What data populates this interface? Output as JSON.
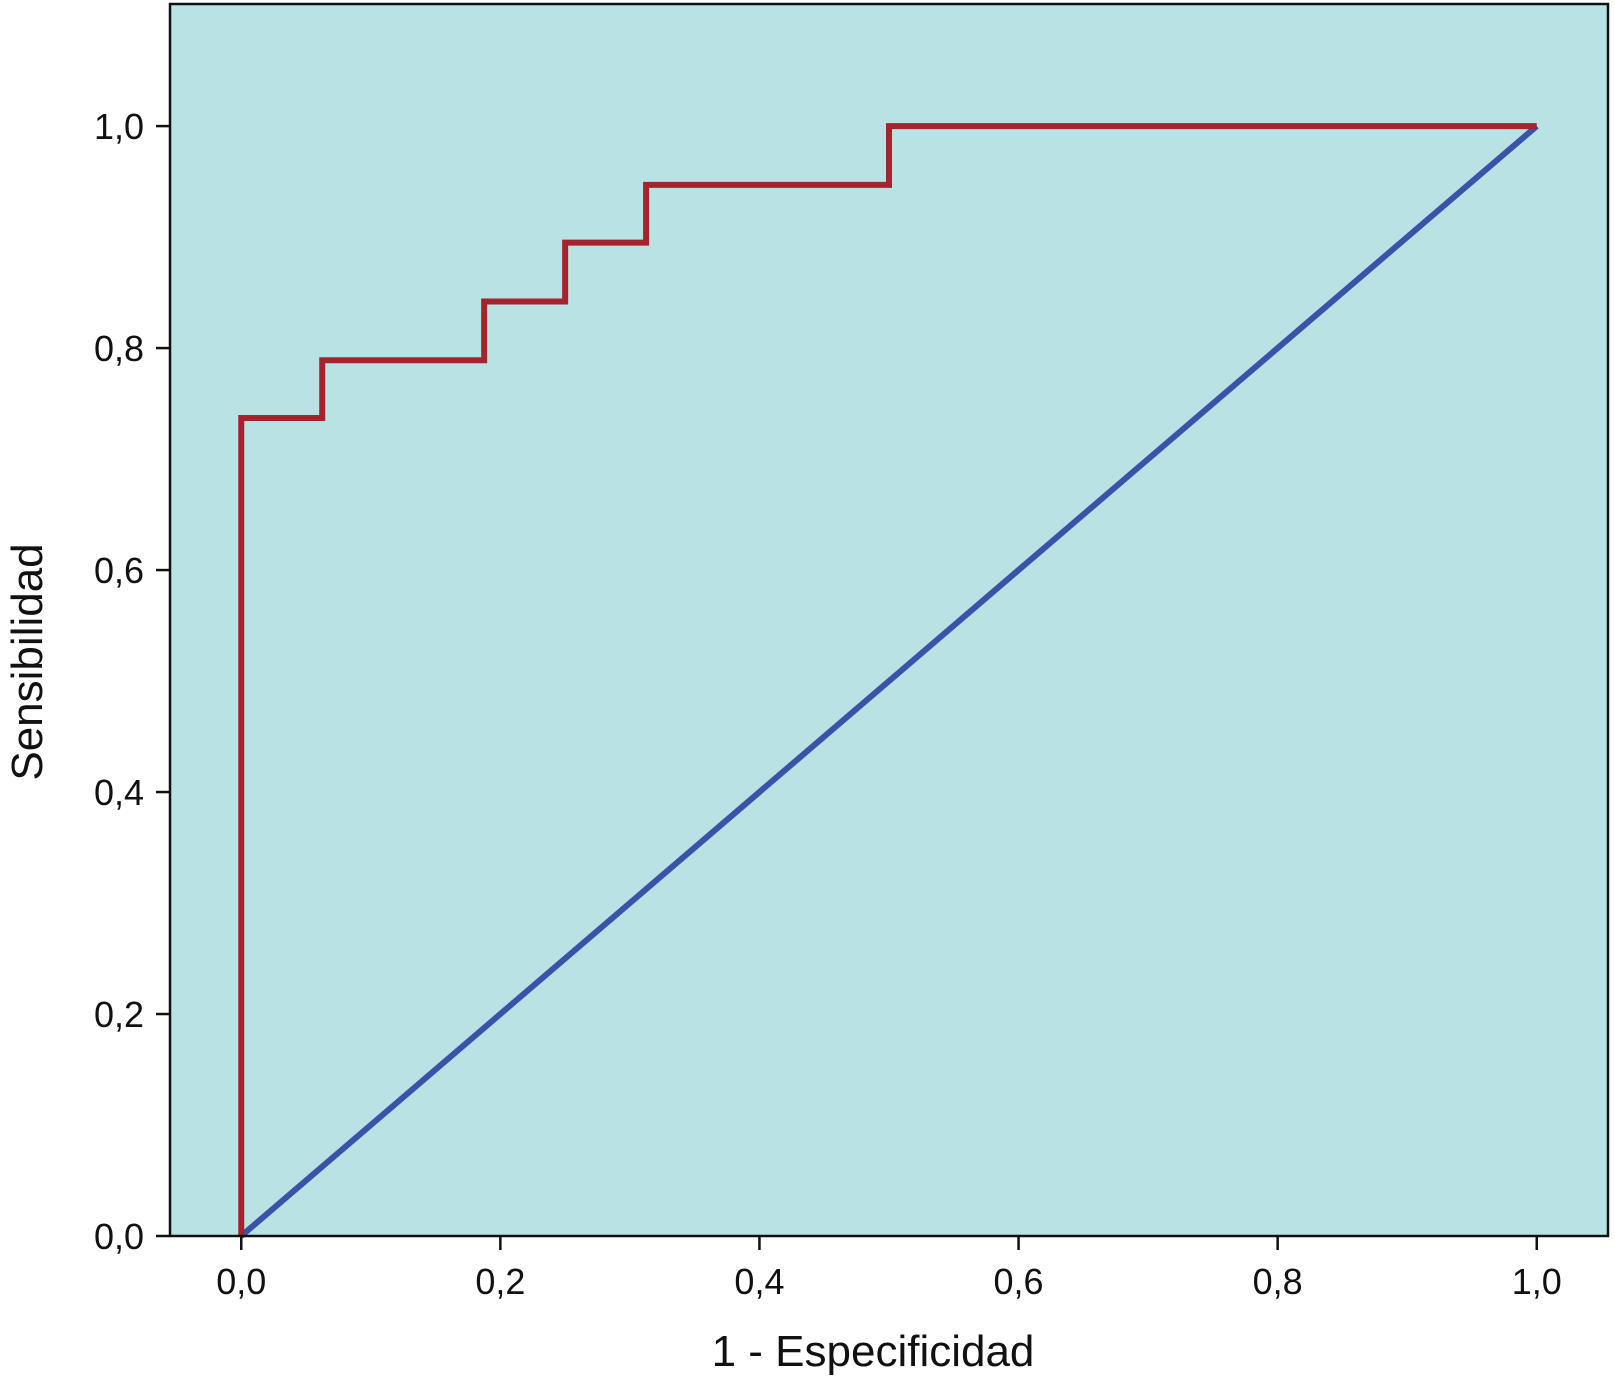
{
  "chart_data": {
    "type": "line",
    "xlabel": "1 - Especificidad",
    "ylabel": "Sensibilidad",
    "xlim": [
      -0.055,
      1.055
    ],
    "ylim": [
      0,
      1.11
    ],
    "xticks": [
      "0,0",
      "0,2",
      "0,4",
      "0,6",
      "0,8",
      "1,0"
    ],
    "yticks": [
      "0,0",
      "0,2",
      "0,4",
      "0,6",
      "0,8",
      "1,0"
    ],
    "grid": false,
    "background_color": "#b9e2e4",
    "series": [
      {
        "color": "#a5232a",
        "x": [
          0.0,
          0.0,
          0.0625,
          0.0625,
          0.1875,
          0.1875,
          0.25,
          0.25,
          0.3125,
          0.3125,
          0.5,
          0.5,
          1.0
        ],
        "y": [
          0.0,
          0.737,
          0.737,
          0.789,
          0.789,
          0.842,
          0.842,
          0.895,
          0.895,
          0.947,
          0.947,
          1.0,
          1.0
        ]
      },
      {
        "color": "#3a53a8",
        "x": [
          0.0,
          1.0
        ],
        "y": [
          0.0,
          1.0
        ]
      }
    ]
  }
}
